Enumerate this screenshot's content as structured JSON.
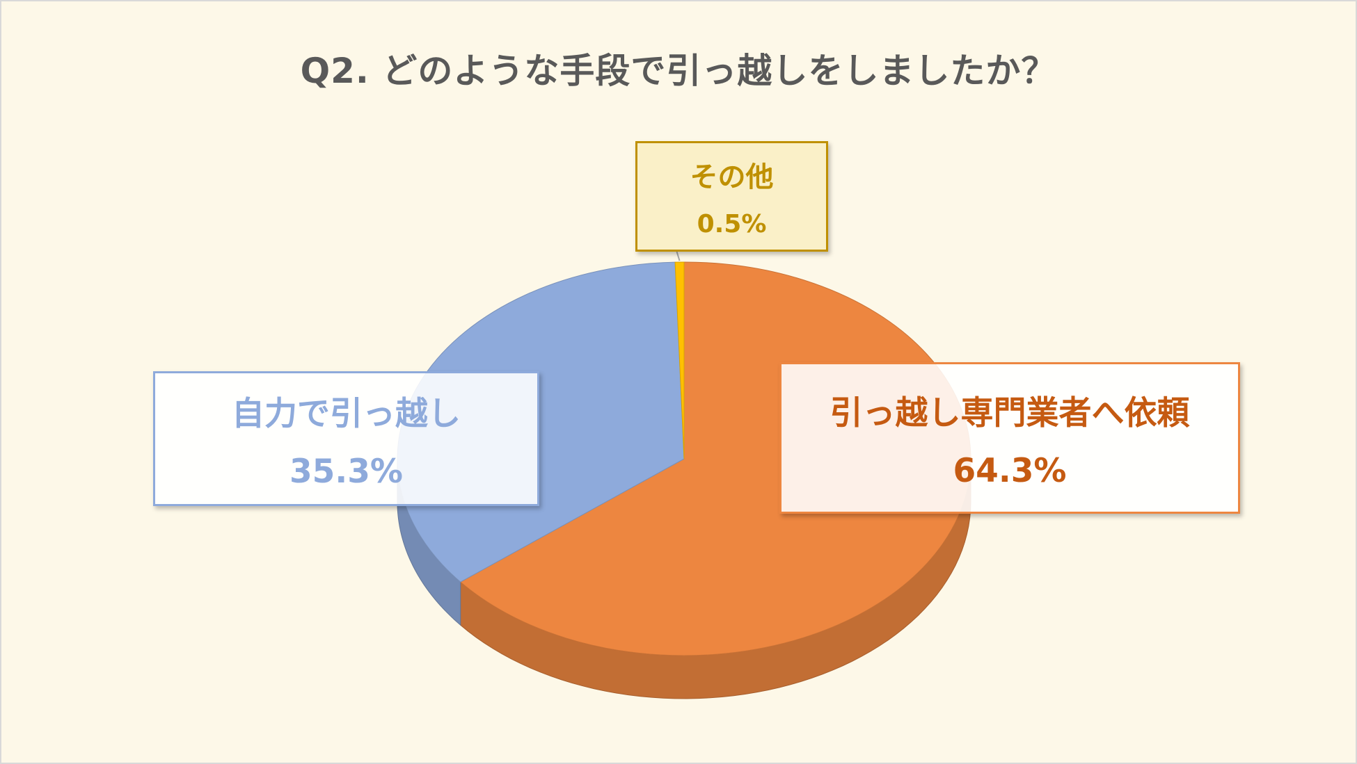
{
  "chart_data": {
    "type": "pie",
    "title": "Q2. どのような手段で引っ越しをしましたか？",
    "slices": [
      {
        "label": "引っ越し専門業者へ依頼",
        "value": 64.3,
        "value_label": "64.3%",
        "color": "#ed8640",
        "text_color": "#c55a11"
      },
      {
        "label": "自力で引っ越し",
        "value": 35.3,
        "value_label": "35.3%",
        "color": "#8eaadb",
        "text_color": "#8eaadb"
      },
      {
        "label": "その他",
        "value": 0.5,
        "value_label": "0.5%",
        "color": "#ffc000",
        "text_color": "#bf9000"
      }
    ],
    "start_angle_deg": 0,
    "direction": "clockwise",
    "style": "3d",
    "legend": "none"
  }
}
